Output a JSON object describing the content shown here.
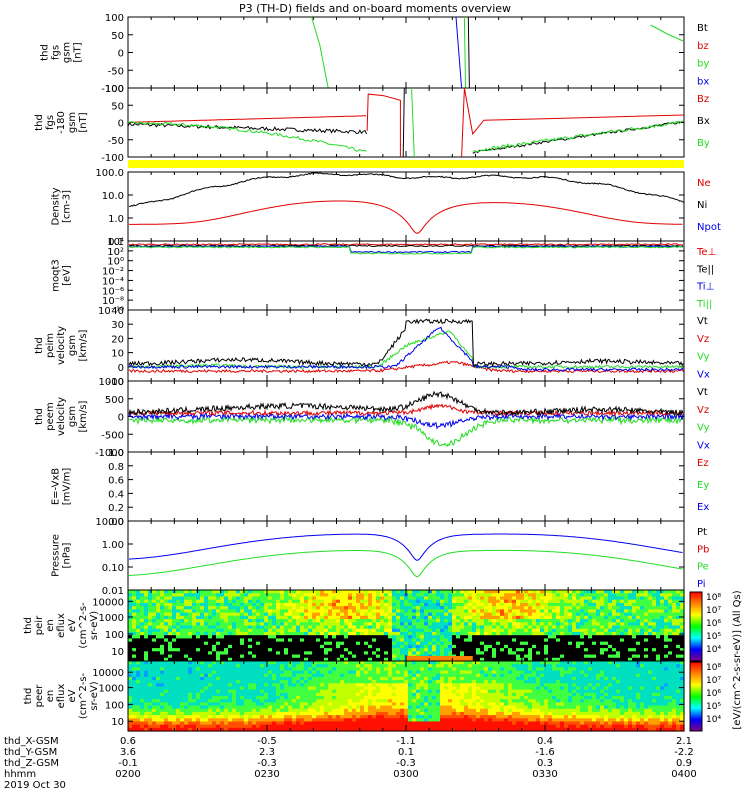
{
  "title": "P3 (TH-D) fields and on-board moments overview",
  "colors": {
    "black": "#000000",
    "red": "#e00000",
    "green": "#22dd22",
    "blue": "#0000ee",
    "yellow": "#ffff00"
  },
  "chart_data": [
    {
      "type": "line",
      "id": "fgs",
      "ylabel": [
        "thd",
        "fgs",
        "gsm",
        "[nT]"
      ],
      "ylim": [
        -100,
        100
      ],
      "yticks": [
        "100",
        "50",
        "0",
        "-50",
        "-100"
      ],
      "legend": [
        {
          "name": "Bt",
          "color": "black"
        },
        {
          "name": "bz",
          "color": "red"
        },
        {
          "name": "by",
          "color": "green"
        },
        {
          "name": "bx",
          "color": "blue"
        }
      ]
    },
    {
      "type": "line",
      "id": "fgs_clip",
      "ylabel": [
        "thd",
        "fgs",
        "-180",
        "gsm",
        "[nT]"
      ],
      "ylim": [
        -125,
        100
      ],
      "yticks": [
        "100",
        "50",
        "0",
        "-50",
        "-100"
      ],
      "legend": [
        {
          "name": "Bz",
          "color": "red"
        },
        {
          "name": "Bx",
          "color": "black"
        },
        {
          "name": "By",
          "color": "green"
        }
      ]
    },
    {
      "type": "line",
      "id": "density",
      "ylabel": [
        "Density",
        "[cm-3]"
      ],
      "scale": "log",
      "yticks": [
        "100.0",
        "10.0",
        "1.0",
        "0.1"
      ],
      "legend": [
        {
          "name": "Ne",
          "color": "red"
        },
        {
          "name": "Ni",
          "color": "black"
        },
        {
          "name": "Npot",
          "color": "blue"
        }
      ]
    },
    {
      "type": "line",
      "id": "temp",
      "ylabel": [
        "moqt3",
        "[eV]"
      ],
      "scale": "log",
      "yticks": [
        "10⁴",
        "10²",
        "10⁰",
        "10⁻²",
        "10⁻⁴",
        "10⁻⁶",
        "10⁻⁸",
        "10⁻¹⁰"
      ],
      "legend": [
        {
          "name": "Te⊥",
          "color": "red"
        },
        {
          "name": "Te||",
          "color": "black"
        },
        {
          "name": "Ti⊥",
          "color": "blue"
        },
        {
          "name": "Ti||",
          "color": "green"
        }
      ]
    },
    {
      "type": "line",
      "id": "ivel",
      "ylabel": [
        "thd",
        "peim",
        "velocity",
        "gsm",
        "[km/s]"
      ],
      "ylim": [
        -10,
        40
      ],
      "yticks": [
        "40",
        "30",
        "20",
        "10",
        "0",
        "-10"
      ],
      "legend": [
        {
          "name": "Vt",
          "color": "black"
        },
        {
          "name": "Vz",
          "color": "red"
        },
        {
          "name": "Vy",
          "color": "green"
        },
        {
          "name": "Vx",
          "color": "blue"
        }
      ]
    },
    {
      "type": "line",
      "id": "evel",
      "ylabel": [
        "thd",
        "peem",
        "velocity",
        "gsm",
        "[km/s]"
      ],
      "ylim": [
        -1000,
        1000
      ],
      "yticks": [
        "1000",
        "500",
        "0",
        "-500",
        "-1000"
      ],
      "legend": [
        {
          "name": "Vt",
          "color": "black"
        },
        {
          "name": "Vz",
          "color": "red"
        },
        {
          "name": "Vy",
          "color": "green"
        },
        {
          "name": "Vx",
          "color": "blue"
        }
      ]
    },
    {
      "type": "line",
      "id": "efield",
      "ylabel": [
        "E=-VxB",
        "[mV/m]"
      ],
      "ylim": [
        0,
        1
      ],
      "yticks": [
        "1.0",
        "0.8",
        "0.6",
        "0.4",
        "0.2",
        "0.0"
      ],
      "legend": [
        {
          "name": "Ez",
          "color": "red"
        },
        {
          "name": "Ey",
          "color": "green"
        },
        {
          "name": "Ex",
          "color": "blue"
        }
      ]
    },
    {
      "type": "line",
      "id": "pressure",
      "ylabel": [
        "Pressure",
        "[nPa]"
      ],
      "scale": "log",
      "yticks": [
        "10.00",
        "1.00",
        "0.10",
        "0.01"
      ],
      "legend": [
        {
          "name": "Pt",
          "color": "black"
        },
        {
          "name": "Pb",
          "color": "red"
        },
        {
          "name": "Pe",
          "color": "green"
        },
        {
          "name": "Pi",
          "color": "blue"
        }
      ]
    },
    {
      "type": "heatmap",
      "id": "ion_spec",
      "ylabel": [
        "thd",
        "peir",
        "en",
        "eflux",
        "eV",
        "(cm^2-s-",
        "sr-eV)"
      ],
      "scale": "log",
      "yticks": [
        "10000",
        "1000",
        "100",
        "10"
      ]
    },
    {
      "type": "heatmap",
      "id": "el_spec",
      "ylabel": [
        "thd",
        "peer",
        "en",
        "eflux",
        "eV",
        "(cm^2-s-",
        "sr-eV)"
      ],
      "scale": "log",
      "yticks": [
        "10000",
        "1000",
        "100",
        "10"
      ]
    }
  ],
  "colorbar": {
    "label": "[eV/(cm^2-s-sr-eV)] (All Qs)",
    "ticks": [
      "10⁸",
      "10⁷",
      "10⁶",
      "10⁵",
      "10⁴",
      "10³",
      "10²"
    ]
  },
  "xaxis": {
    "rows": [
      {
        "label": "thd_X-GSM",
        "values": [
          "0.6",
          "-0.5",
          "-1.1",
          "0.4",
          "2.1"
        ]
      },
      {
        "label": "thd_Y-GSM",
        "values": [
          "3.6",
          "2.3",
          "0.1",
          "-1.6",
          "-2.2"
        ]
      },
      {
        "label": "thd_Z-GSM",
        "values": [
          "-0.1",
          "-0.3",
          "-0.3",
          "0.3",
          "0.9"
        ]
      },
      {
        "label": "hhmm",
        "values": [
          "0200",
          "0230",
          "0300",
          "0330",
          "0400"
        ]
      }
    ],
    "date": "2019 Oct 30"
  }
}
